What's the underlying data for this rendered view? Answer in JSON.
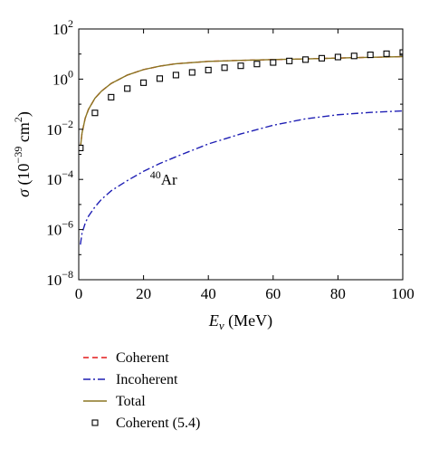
{
  "chart_data": {
    "type": "line",
    "title": "",
    "xlabel": "E_ν (MeV)",
    "ylabel": "σ (10^−39 cm²)",
    "xscale": "linear",
    "yscale": "log",
    "xlim": [
      0,
      100
    ],
    "ylim": [
      1e-08,
      100
    ],
    "grid": false,
    "legend_placement": "below",
    "annotation": "40Ar",
    "annotation_position": {
      "x": 22,
      "y": 0.0001
    },
    "x_ticks": [
      {
        "value": 0,
        "label": "0"
      },
      {
        "value": 20,
        "label": "20"
      },
      {
        "value": 40,
        "label": "40"
      },
      {
        "value": 60,
        "label": "60"
      },
      {
        "value": 80,
        "label": "80"
      },
      {
        "value": 100,
        "label": "100"
      }
    ],
    "y_ticks": [
      {
        "value": 100,
        "mant": "10",
        "exp": "2"
      },
      {
        "value": 1,
        "mant": "10",
        "exp": "0"
      },
      {
        "value": 0.01,
        "mant": "10",
        "exp": "−2"
      },
      {
        "value": 0.0001,
        "mant": "10",
        "exp": "−4"
      },
      {
        "value": 1e-06,
        "mant": "10",
        "exp": "−6"
      },
      {
        "value": 1e-08,
        "mant": "10",
        "exp": "−8"
      }
    ],
    "series": [
      {
        "name": "Coherent",
        "style": "dashed",
        "color": "#e41a1c",
        "x": [
          0.5,
          1,
          2,
          3,
          5,
          7,
          10,
          15,
          20,
          25,
          30,
          40,
          50,
          60,
          70,
          80,
          90,
          100
        ],
        "y": [
          0.00174,
          0.0069,
          0.0277,
          0.062,
          0.172,
          0.33,
          0.67,
          1.45,
          2.4,
          3.3,
          4.1,
          5.1,
          5.6,
          6.0,
          6.4,
          6.9,
          7.4,
          7.9
        ]
      },
      {
        "name": "Incoherent",
        "style": "dashdot",
        "color": "#1f1fb4",
        "x": [
          0.5,
          1,
          2,
          3,
          5,
          7,
          10,
          15,
          20,
          25,
          30,
          40,
          50,
          60,
          70,
          80,
          90,
          100
        ],
        "y": [
          2.5e-07,
          7e-07,
          1.8e-06,
          3.4e-06,
          8e-06,
          1.6e-05,
          3.5e-05,
          9e-05,
          0.00021,
          0.00043,
          0.0008,
          0.0026,
          0.0065,
          0.0145,
          0.026,
          0.038,
          0.047,
          0.054
        ]
      },
      {
        "name": "Total",
        "style": "solid",
        "color": "#8b7622",
        "x": [
          0.5,
          1,
          2,
          3,
          5,
          7,
          10,
          15,
          20,
          25,
          30,
          40,
          50,
          60,
          70,
          80,
          90,
          100
        ],
        "y": [
          0.00174,
          0.0069,
          0.0277,
          0.062,
          0.172,
          0.33,
          0.67,
          1.45,
          2.4,
          3.3,
          4.1,
          5.1,
          5.6,
          6.0,
          6.4,
          6.9,
          7.4,
          7.9
        ]
      },
      {
        "name": "Coherent (5.4)",
        "style": "markers",
        "color": "#000000",
        "x": [
          0.5,
          5,
          10,
          15,
          20,
          25,
          30,
          35,
          40,
          45,
          50,
          55,
          60,
          65,
          70,
          75,
          80,
          85,
          90,
          95,
          100
        ],
        "y": [
          0.0018,
          0.045,
          0.19,
          0.42,
          0.72,
          1.05,
          1.45,
          1.85,
          2.3,
          2.85,
          3.4,
          4.0,
          4.6,
          5.3,
          6.0,
          6.8,
          7.6,
          8.4,
          9.3,
          10.3,
          11.5
        ]
      }
    ]
  }
}
